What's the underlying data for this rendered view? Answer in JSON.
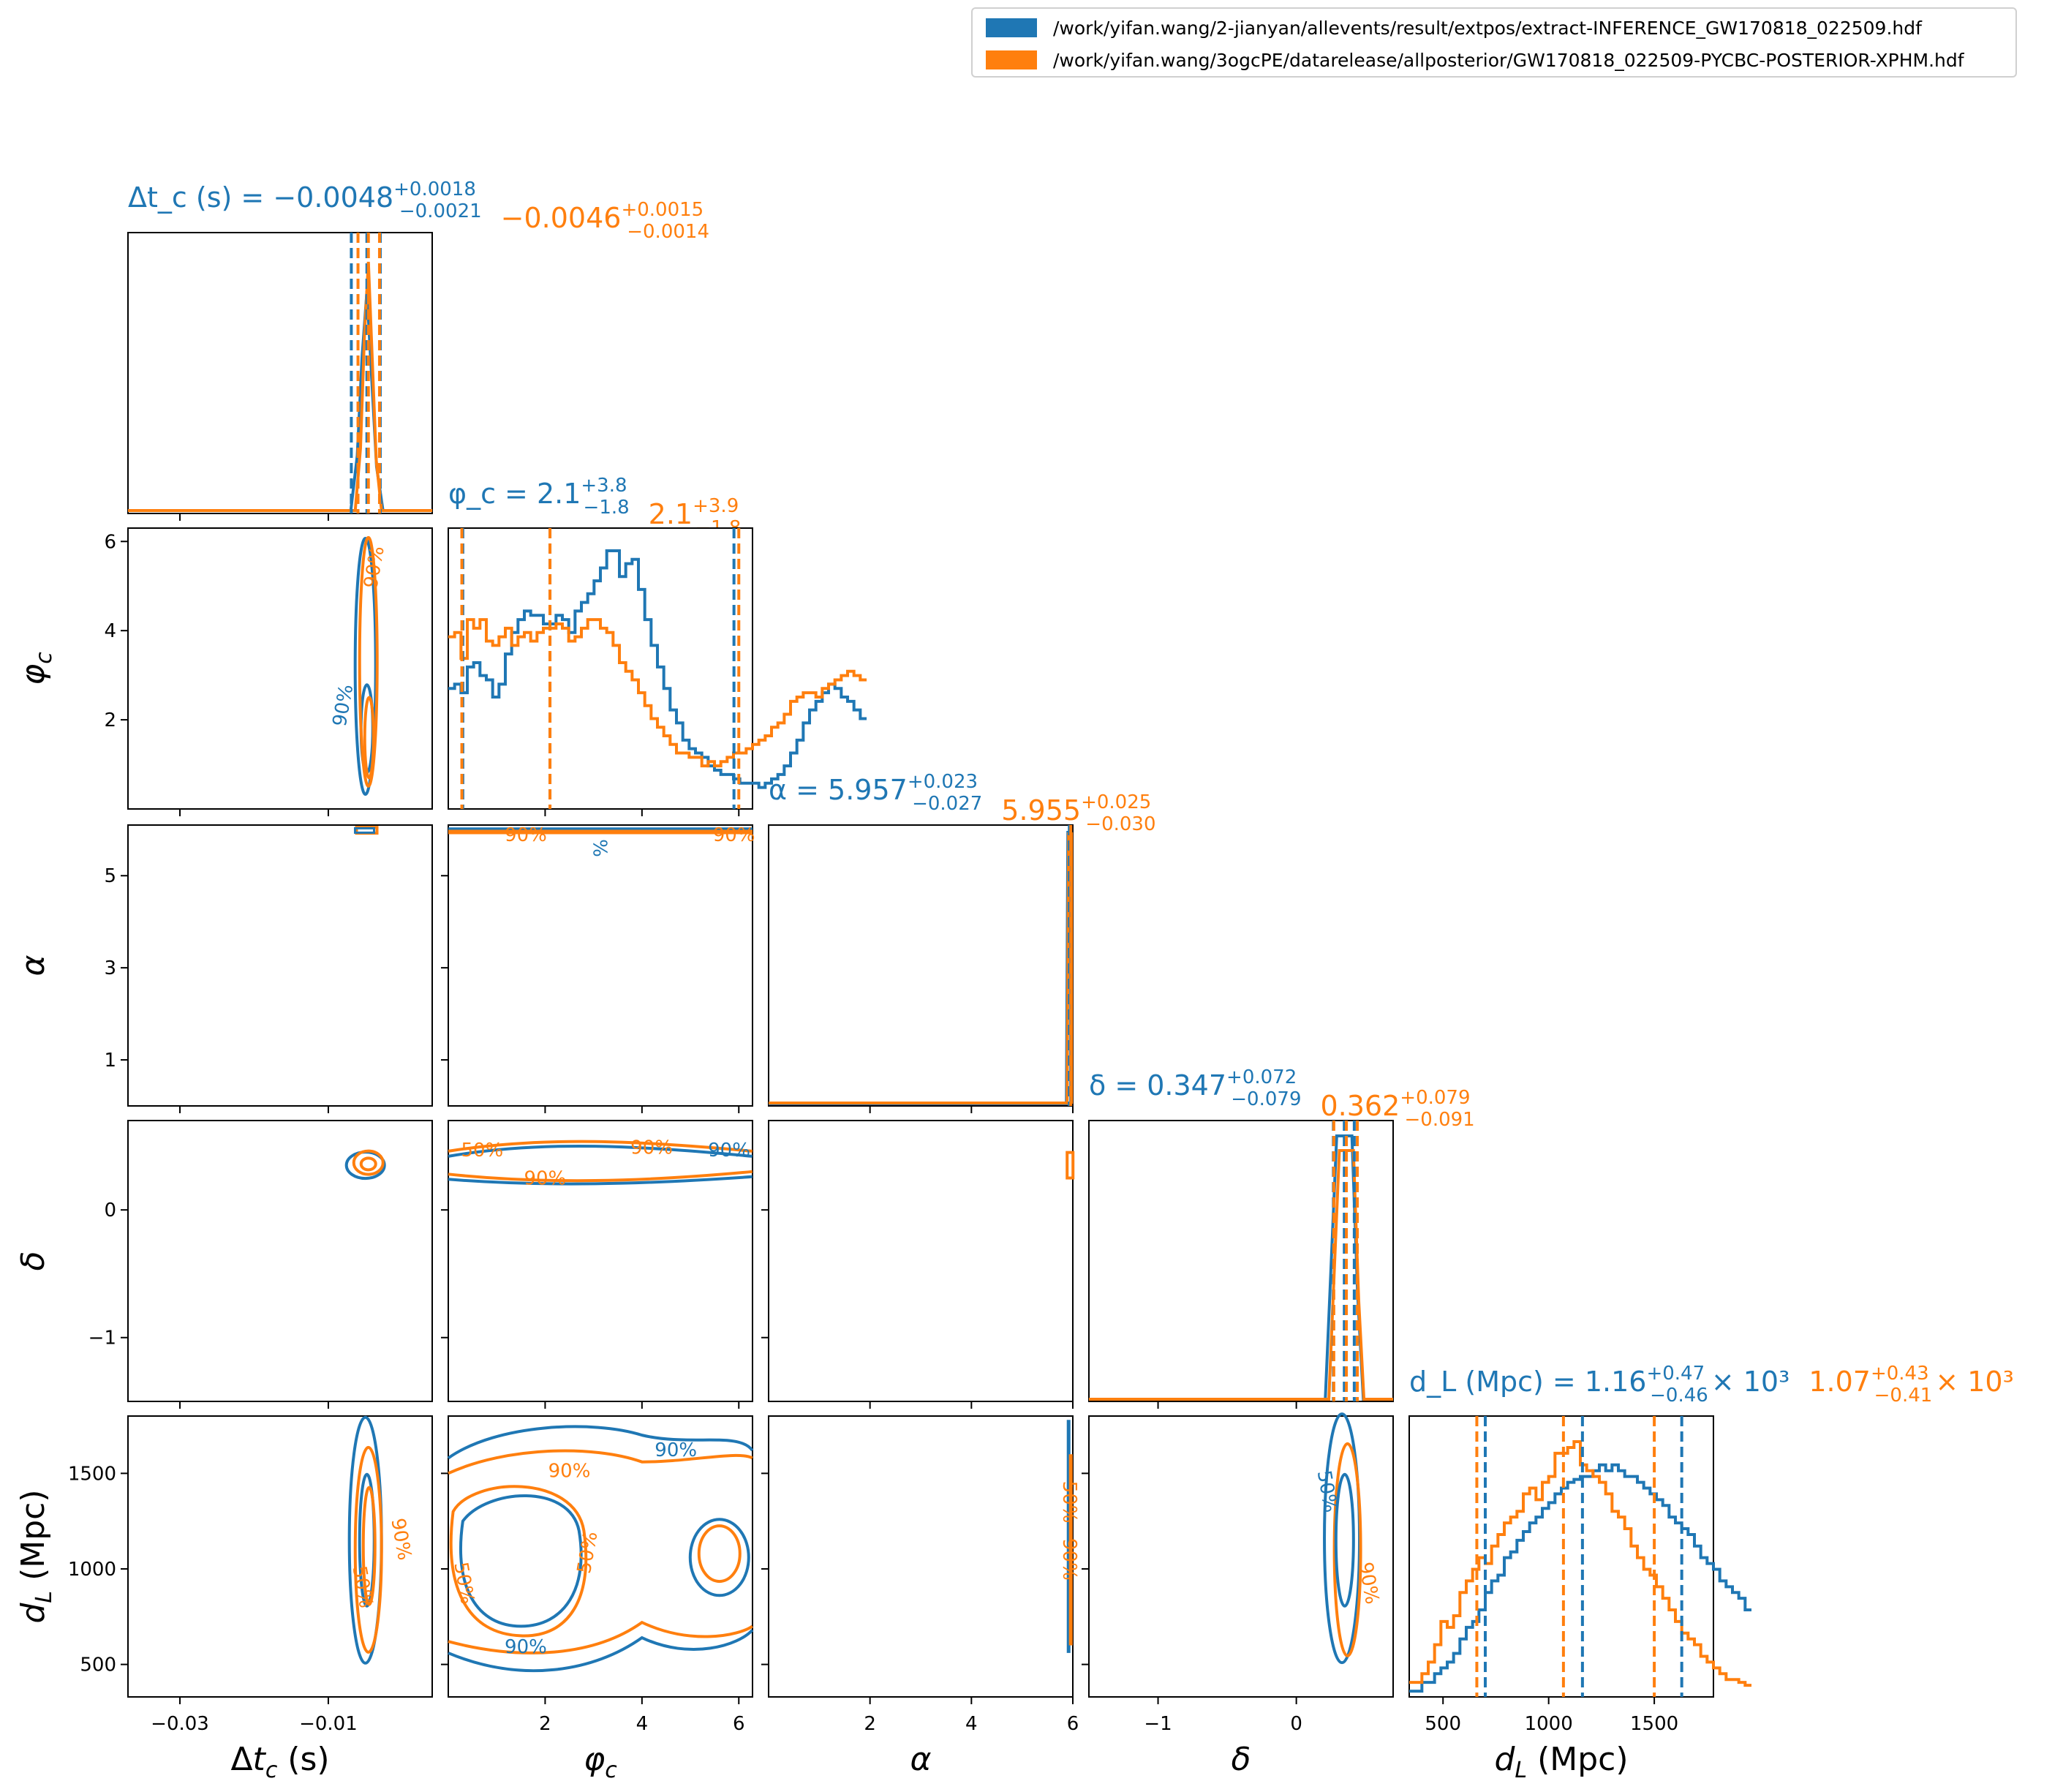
{
  "legend": {
    "entries": [
      {
        "label": "/work/yifan.wang/2-jianyan/allevents/result/extpos/extract-INFERENCE_GW170818_022509.hdf",
        "color": "#1f77b4"
      },
      {
        "label": "/work/yifan.wang/3ogcPE/datarelease/allposterior/GW170818_022509-PYCBC-POSTERIOR-XPHM.hdf",
        "color": "#ff7f0e"
      }
    ]
  },
  "chart_data": {
    "type": "corner",
    "colors": {
      "run1": "#1f77b4",
      "run2": "#ff7f0e"
    },
    "parameters": [
      {
        "key": "dtc",
        "label": "Δt_c (s)",
        "range": [
          -0.037,
          0.004
        ],
        "ticks": [
          -0.03,
          -0.01
        ],
        "tick_labels": [
          "−0.03",
          "−0.01"
        ],
        "title": {
          "name": "Δt_c (s) = ",
          "run1": {
            "median": "−0.0048",
            "plus": "+0.0018",
            "minus": "−0.0021"
          },
          "run2": {
            "median": "−0.0046",
            "plus": "+0.0015",
            "minus": "−0.0014"
          }
        },
        "quantiles": {
          "run1": [
            -0.0069,
            -0.0048,
            -0.003
          ],
          "run2": [
            -0.006,
            -0.0046,
            -0.0031
          ]
        }
      },
      {
        "key": "phic",
        "label": "φ_c",
        "range": [
          0.0,
          6.283
        ],
        "ticks": [
          2,
          4,
          6
        ],
        "tick_labels": [
          "2",
          "4",
          "6"
        ],
        "title": {
          "name": "φ_c = ",
          "run1": {
            "median": "2.1",
            "plus": "+3.8",
            "minus": "−1.8"
          },
          "run2": {
            "median": "2.1",
            "plus": "+3.9",
            "minus": "−1.8"
          }
        },
        "quantiles": {
          "run1": [
            0.3,
            2.1,
            5.9
          ],
          "run2": [
            0.28,
            2.1,
            6.0
          ]
        }
      },
      {
        "key": "alpha",
        "label": "α",
        "range": [
          0.0,
          6.0
        ],
        "ticks": [
          2,
          4,
          6
        ],
        "tick_labels": [
          "2",
          "4",
          "6"
        ],
        "title": {
          "name": "α = ",
          "run1": {
            "median": "5.957",
            "plus": "+0.023",
            "minus": "−0.027"
          },
          "run2": {
            "median": "5.955",
            "plus": "+0.025",
            "minus": "−0.030"
          }
        },
        "quantiles": {
          "run1": [
            5.93,
            5.957,
            5.98
          ],
          "run2": [
            5.925,
            5.955,
            5.98
          ]
        }
      },
      {
        "key": "delta",
        "label": "δ",
        "range": [
          -1.5,
          0.7
        ],
        "ticks": [
          -1,
          0
        ],
        "tick_labels": [
          "−1",
          "0"
        ],
        "title": {
          "name": "δ = ",
          "run1": {
            "median": "0.347",
            "plus": "+0.072",
            "minus": "−0.079"
          },
          "run2": {
            "median": "0.362",
            "plus": "+0.079",
            "minus": "−0.091"
          }
        },
        "quantiles": {
          "run1": [
            0.268,
            0.347,
            0.419
          ],
          "run2": [
            0.271,
            0.362,
            0.441
          ]
        }
      },
      {
        "key": "dl",
        "label": "d_L (Mpc)",
        "range": [
          340,
          1780
        ],
        "ticks": [
          500,
          1000,
          1500
        ],
        "tick_labels": [
          "500",
          "1000",
          "1500"
        ],
        "title": {
          "name": "d_L (Mpc) = ",
          "run1": {
            "median": "1.16",
            "plus": "+0.47",
            "minus": "−0.46",
            "exp": "× 10³"
          },
          "run2": {
            "median": "1.07",
            "plus": "+0.43",
            "minus": "−0.41",
            "exp": "× 10³"
          }
        },
        "quantiles": {
          "run1": [
            700,
            1160,
            1630
          ],
          "run2": [
            660,
            1070,
            1500
          ]
        }
      }
    ],
    "y_ticks": {
      "phic": {
        "values": [
          2,
          4,
          6
        ],
        "labels": [
          "2",
          "4",
          "6"
        ],
        "range": [
          0,
          6.3
        ]
      },
      "alpha": {
        "values": [
          1,
          3,
          5
        ],
        "labels": [
          "1",
          "3",
          "5"
        ],
        "range": [
          0,
          6.1
        ]
      },
      "delta": {
        "values": [
          -1,
          0
        ],
        "labels": [
          "−1",
          "0"
        ],
        "range": [
          -1.5,
          0.7
        ]
      },
      "dl": {
        "values": [
          500,
          1000,
          1500
        ],
        "labels": [
          "500",
          "1000",
          "1500"
        ],
        "range": [
          330,
          1800
        ]
      }
    },
    "histograms": {
      "phic": {
        "bins_start": 0.0,
        "bin_width": 0.1309,
        "run1": [
          2.8,
          2.9,
          2.7,
          3.3,
          3.4,
          3.1,
          3.0,
          2.6,
          2.9,
          3.6,
          4.1,
          4.4,
          4.6,
          4.5,
          4.5,
          4.3,
          4.3,
          4.5,
          4.4,
          4.1,
          4.6,
          4.8,
          5.0,
          5.3,
          5.6,
          6.0,
          6.0,
          5.4,
          5.7,
          5.8,
          5.1,
          4.4,
          3.8,
          3.3,
          2.8,
          2.3,
          2.0,
          1.6,
          1.4,
          1.3,
          1.2,
          1.0,
          0.9,
          0.8,
          0.8,
          0.7,
          0.6,
          0.6,
          0.6,
          0.5,
          0.6,
          0.7,
          0.8,
          1.0,
          1.3,
          1.6,
          2.0,
          2.3,
          2.5,
          2.7,
          2.9,
          2.8,
          2.6,
          2.5,
          2.3,
          2.1
        ],
        "run2": [
          4.0,
          4.1,
          3.5,
          4.4,
          4.2,
          4.4,
          3.9,
          3.8,
          4.0,
          4.2,
          3.8,
          4.0,
          4.1,
          3.9,
          4.1,
          4.2,
          4.2,
          4.3,
          4.2,
          3.9,
          4.0,
          4.2,
          4.4,
          4.4,
          4.2,
          4.1,
          3.8,
          3.4,
          3.2,
          3.0,
          2.7,
          2.4,
          2.1,
          1.9,
          1.7,
          1.5,
          1.3,
          1.3,
          1.2,
          1.2,
          1.0,
          1.1,
          1.0,
          1.1,
          1.2,
          1.3,
          1.3,
          1.4,
          1.5,
          1.6,
          1.7,
          1.9,
          2.0,
          2.2,
          2.5,
          2.6,
          2.7,
          2.7,
          2.6,
          2.8,
          2.9,
          3.0,
          3.1,
          3.2,
          3.1,
          3.0
        ]
      },
      "dl": {
        "bins_start": 340,
        "bin_width": 30,
        "run1": [
          0.02,
          0.02,
          0.05,
          0.05,
          0.08,
          0.1,
          0.12,
          0.15,
          0.2,
          0.24,
          0.26,
          0.3,
          0.36,
          0.4,
          0.42,
          0.48,
          0.5,
          0.54,
          0.57,
          0.6,
          0.62,
          0.65,
          0.67,
          0.7,
          0.72,
          0.74,
          0.75,
          0.76,
          0.76,
          0.78,
          0.8,
          0.78,
          0.8,
          0.78,
          0.76,
          0.76,
          0.74,
          0.72,
          0.7,
          0.68,
          0.66,
          0.62,
          0.6,
          0.58,
          0.56,
          0.52,
          0.48,
          0.46,
          0.44,
          0.4,
          0.38,
          0.36,
          0.34,
          0.3
        ],
        "run2": [
          0.05,
          0.05,
          0.08,
          0.12,
          0.18,
          0.26,
          0.24,
          0.28,
          0.36,
          0.4,
          0.44,
          0.48,
          0.46,
          0.52,
          0.56,
          0.6,
          0.62,
          0.64,
          0.7,
          0.72,
          0.68,
          0.74,
          0.76,
          0.84,
          0.84,
          0.86,
          0.88,
          0.8,
          0.78,
          0.76,
          0.74,
          0.7,
          0.64,
          0.62,
          0.58,
          0.52,
          0.48,
          0.44,
          0.42,
          0.38,
          0.34,
          0.3,
          0.26,
          0.22,
          0.2,
          0.18,
          0.14,
          0.12,
          0.1,
          0.08,
          0.06,
          0.06,
          0.05,
          0.04
        ]
      }
    },
    "contour_labels": [
      "50%",
      "90%"
    ]
  }
}
